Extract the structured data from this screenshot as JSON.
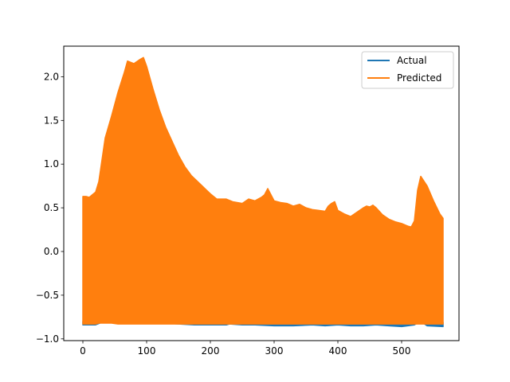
{
  "colors": {
    "actual": "#1f77b4",
    "predicted": "#ff7f0e",
    "axis": "#000000",
    "legend_border": "#cccccc",
    "background": "#ffffff"
  },
  "chart_data": {
    "type": "line",
    "title": "",
    "xlabel": "",
    "ylabel": "",
    "xlim": [
      -30,
      590
    ],
    "ylim": [
      -1.02,
      2.35
    ],
    "x_ticks": [
      0,
      100,
      200,
      300,
      400,
      500
    ],
    "y_ticks": [
      -1.0,
      -0.5,
      0.0,
      0.5,
      1.0,
      1.5,
      2.0
    ],
    "x_tick_labels": [
      "0",
      "100",
      "200",
      "300",
      "400",
      "500"
    ],
    "y_tick_labels": [
      "−1.0",
      "−0.5",
      "0.0",
      "0.5",
      "1.0",
      "1.5",
      "2.0"
    ],
    "grid": false,
    "legend_position": "top-right",
    "series": [
      {
        "name": "Actual",
        "band": true,
        "x": [
          0,
          20,
          30,
          40,
          60,
          70,
          80,
          95,
          110,
          130,
          150,
          175,
          200,
          225,
          230,
          250,
          270,
          300,
          330,
          360,
          380,
          400,
          420,
          440,
          460,
          480,
          500,
          520,
          530,
          540,
          565
        ],
        "upper": [
          -0.8,
          -0.8,
          -0.77,
          -0.72,
          -0.69,
          -0.66,
          -0.67,
          -0.69,
          -0.74,
          -0.78,
          -0.8,
          -0.81,
          -0.81,
          -0.81,
          -0.8,
          -0.81,
          -0.8,
          -0.81,
          -0.81,
          -0.8,
          -0.81,
          -0.8,
          -0.81,
          -0.81,
          -0.8,
          -0.81,
          -0.81,
          -0.8,
          -0.76,
          -0.81,
          -0.81
        ],
        "lower": [
          -0.84,
          -0.84,
          -0.81,
          -0.75,
          -0.72,
          -0.7,
          -0.71,
          -0.73,
          -0.78,
          -0.82,
          -0.83,
          -0.84,
          -0.84,
          -0.84,
          -0.83,
          -0.84,
          -0.84,
          -0.85,
          -0.85,
          -0.84,
          -0.85,
          -0.84,
          -0.85,
          -0.85,
          -0.84,
          -0.85,
          -0.86,
          -0.84,
          -0.8,
          -0.85,
          -0.86
        ]
      },
      {
        "name": "Predicted",
        "band": true,
        "x": [
          0,
          5,
          10,
          20,
          25,
          30,
          35,
          45,
          55,
          65,
          70,
          80,
          90,
          95,
          100,
          110,
          120,
          130,
          140,
          150,
          160,
          170,
          180,
          190,
          200,
          210,
          225,
          235,
          250,
          260,
          270,
          280,
          285,
          290,
          300,
          310,
          320,
          330,
          340,
          350,
          360,
          370,
          380,
          385,
          390,
          395,
          400,
          410,
          420,
          430,
          440,
          445,
          450,
          455,
          460,
          470,
          480,
          490,
          500,
          510,
          515,
          520,
          525,
          530,
          540,
          550,
          560,
          565
        ],
        "upper": [
          0.63,
          0.63,
          0.62,
          0.68,
          0.8,
          1.05,
          1.3,
          1.55,
          1.82,
          2.05,
          2.18,
          2.15,
          2.2,
          2.22,
          2.12,
          1.86,
          1.62,
          1.42,
          1.26,
          1.1,
          0.97,
          0.87,
          0.8,
          0.73,
          0.66,
          0.6,
          0.6,
          0.57,
          0.55,
          0.6,
          0.58,
          0.62,
          0.65,
          0.72,
          0.58,
          0.56,
          0.55,
          0.52,
          0.54,
          0.5,
          0.48,
          0.47,
          0.46,
          0.52,
          0.55,
          0.57,
          0.47,
          0.43,
          0.4,
          0.45,
          0.5,
          0.52,
          0.51,
          0.53,
          0.5,
          0.42,
          0.37,
          0.34,
          0.32,
          0.29,
          0.28,
          0.35,
          0.7,
          0.86,
          0.75,
          0.58,
          0.43,
          0.38
        ],
        "lower": [
          -0.83,
          -0.83,
          -0.83,
          -0.83,
          -0.82,
          -0.82,
          -0.82,
          -0.82,
          -0.83,
          -0.83,
          -0.83,
          -0.83,
          -0.83,
          -0.83,
          -0.83,
          -0.83,
          -0.83,
          -0.83,
          -0.83,
          -0.83,
          -0.83,
          -0.83,
          -0.83,
          -0.83,
          -0.83,
          -0.83,
          -0.83,
          -0.83,
          -0.83,
          -0.83,
          -0.83,
          -0.83,
          -0.83,
          -0.83,
          -0.83,
          -0.83,
          -0.83,
          -0.83,
          -0.83,
          -0.83,
          -0.83,
          -0.83,
          -0.83,
          -0.83,
          -0.83,
          -0.83,
          -0.83,
          -0.83,
          -0.83,
          -0.83,
          -0.83,
          -0.83,
          -0.83,
          -0.83,
          -0.83,
          -0.83,
          -0.83,
          -0.83,
          -0.83,
          -0.83,
          -0.83,
          -0.83,
          -0.83,
          -0.83,
          -0.83,
          -0.83,
          -0.83,
          -0.83
        ]
      }
    ]
  }
}
